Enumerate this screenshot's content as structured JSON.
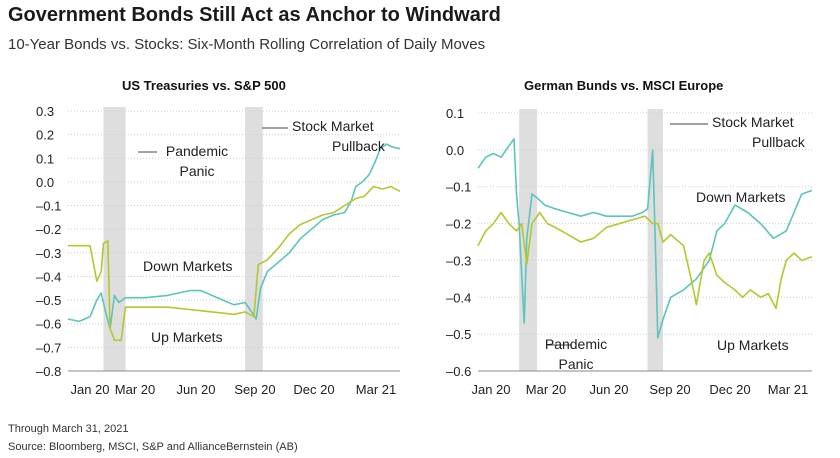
{
  "header": {
    "title": "Government Bonds Still Act as Anchor to Windward",
    "subtitle": "10-Year Bonds vs. Stocks: Six-Month Rolling Correlation of Daily Moves"
  },
  "footer": {
    "note": "Through March 31, 2021",
    "source": "Source: Bloomberg, MSCI, S&P and AllianceBernstein (AB)"
  },
  "colors": {
    "teal": "#5bc4bd",
    "olive": "#b5c72d",
    "shade": "#dedede"
  },
  "chart_data": [
    {
      "type": "line",
      "title": "US Treasuries vs. S&P 500",
      "xlabel": "",
      "ylabel": "",
      "ylim": [
        -0.8,
        0.3
      ],
      "yticks": [
        "0.3",
        "0.2",
        "0.1",
        "0.0",
        "–0.1",
        "–0.2",
        "–0.3",
        "–0.4",
        "–0.5",
        "–0.6",
        "–0.7",
        "–0.8"
      ],
      "xticks": [
        "Jan 20",
        "Mar 20",
        "Jun 20",
        "Sep 20",
        "Dec 20",
        "Mar 21"
      ],
      "shaded_periods": [
        [
          1.6,
          2.6
        ],
        [
          8.0,
          8.8
        ]
      ],
      "annotations": {
        "pandemic": [
          "Pandemic",
          "Panic"
        ],
        "pullback": [
          "Stock Market",
          "Pullback"
        ],
        "down_markets": "Down Markets",
        "up_markets": "Up Markets"
      },
      "series": [
        {
          "name": "Down Markets",
          "color": "teal",
          "points": [
            [
              0,
              -0.58
            ],
            [
              0.5,
              -0.59
            ],
            [
              1.0,
              -0.57
            ],
            [
              1.3,
              -0.5
            ],
            [
              1.5,
              -0.47
            ],
            [
              1.7,
              -0.55
            ],
            [
              1.9,
              -0.62
            ],
            [
              2.1,
              -0.48
            ],
            [
              2.3,
              -0.51
            ],
            [
              2.6,
              -0.49
            ],
            [
              3.5,
              -0.49
            ],
            [
              4.5,
              -0.48
            ],
            [
              5.0,
              -0.47
            ],
            [
              5.5,
              -0.46
            ],
            [
              6.0,
              -0.46
            ],
            [
              6.5,
              -0.48
            ],
            [
              7.0,
              -0.5
            ],
            [
              7.5,
              -0.52
            ],
            [
              8.0,
              -0.51
            ],
            [
              8.3,
              -0.55
            ],
            [
              8.5,
              -0.58
            ],
            [
              8.7,
              -0.45
            ],
            [
              9.0,
              -0.38
            ],
            [
              9.5,
              -0.34
            ],
            [
              10.0,
              -0.3
            ],
            [
              10.5,
              -0.24
            ],
            [
              11.0,
              -0.2
            ],
            [
              11.5,
              -0.16
            ],
            [
              12.0,
              -0.14
            ],
            [
              12.5,
              -0.13
            ],
            [
              12.8,
              -0.08
            ],
            [
              13.0,
              -0.02
            ],
            [
              13.3,
              0.0
            ],
            [
              13.6,
              0.03
            ],
            [
              13.9,
              0.09
            ],
            [
              14.1,
              0.14
            ],
            [
              14.4,
              0.16
            ],
            [
              14.6,
              0.15
            ],
            [
              15.0,
              0.14
            ]
          ]
        },
        {
          "name": "Up Markets",
          "color": "olive",
          "points": [
            [
              0,
              -0.27
            ],
            [
              0.5,
              -0.27
            ],
            [
              1.0,
              -0.27
            ],
            [
              1.3,
              -0.42
            ],
            [
              1.5,
              -0.38
            ],
            [
              1.6,
              -0.26
            ],
            [
              1.8,
              -0.25
            ],
            [
              1.9,
              -0.62
            ],
            [
              2.1,
              -0.67
            ],
            [
              2.4,
              -0.67
            ],
            [
              2.6,
              -0.53
            ],
            [
              3.5,
              -0.53
            ],
            [
              4.5,
              -0.53
            ],
            [
              5.5,
              -0.54
            ],
            [
              6.5,
              -0.55
            ],
            [
              7.5,
              -0.56
            ],
            [
              8.0,
              -0.55
            ],
            [
              8.4,
              -0.57
            ],
            [
              8.6,
              -0.35
            ],
            [
              9.0,
              -0.33
            ],
            [
              9.5,
              -0.28
            ],
            [
              10.0,
              -0.22
            ],
            [
              10.5,
              -0.18
            ],
            [
              11.0,
              -0.16
            ],
            [
              11.5,
              -0.14
            ],
            [
              12.0,
              -0.13
            ],
            [
              12.5,
              -0.1
            ],
            [
              13.0,
              -0.07
            ],
            [
              13.4,
              -0.06
            ],
            [
              13.8,
              -0.02
            ],
            [
              14.2,
              -0.03
            ],
            [
              14.6,
              -0.02
            ],
            [
              15.0,
              -0.04
            ]
          ]
        }
      ]
    },
    {
      "type": "line",
      "title": "German Bunds vs. MSCI Europe",
      "xlabel": "",
      "ylabel": "",
      "ylim": [
        -0.6,
        0.1
      ],
      "yticks": [
        "0.1",
        "0.0",
        "–0.1",
        "–0.2",
        "–0.3",
        "–0.4",
        "–0.5",
        "–0.6"
      ],
      "xticks": [
        "Jan 20",
        "Mar 20",
        "Jun 20",
        "Sep 20",
        "Dec 20",
        "Mar 21"
      ],
      "shaded_periods": [
        [
          1.6,
          2.3
        ],
        [
          6.6,
          7.2
        ]
      ],
      "annotations": {
        "pandemic": [
          "Pandemic",
          "Panic"
        ],
        "pullback": [
          "Stock Market",
          "Pullback"
        ],
        "down_markets": "Down Markets",
        "up_markets": "Up Markets"
      },
      "series": [
        {
          "name": "Down Markets",
          "color": "teal",
          "points": [
            [
              0,
              -0.05
            ],
            [
              0.3,
              -0.02
            ],
            [
              0.6,
              -0.01
            ],
            [
              0.9,
              -0.02
            ],
            [
              1.2,
              0.01
            ],
            [
              1.4,
              0.03
            ],
            [
              1.5,
              -0.12
            ],
            [
              1.6,
              -0.2
            ],
            [
              1.8,
              -0.47
            ],
            [
              1.9,
              -0.24
            ],
            [
              2.1,
              -0.12
            ],
            [
              2.3,
              -0.13
            ],
            [
              2.6,
              -0.15
            ],
            [
              3.0,
              -0.16
            ],
            [
              3.5,
              -0.17
            ],
            [
              4.0,
              -0.18
            ],
            [
              4.5,
              -0.17
            ],
            [
              5.0,
              -0.18
            ],
            [
              5.5,
              -0.18
            ],
            [
              6.0,
              -0.18
            ],
            [
              6.4,
              -0.17
            ],
            [
              6.6,
              -0.16
            ],
            [
              6.8,
              0.0
            ],
            [
              6.9,
              -0.25
            ],
            [
              7.0,
              -0.51
            ],
            [
              7.2,
              -0.46
            ],
            [
              7.5,
              -0.4
            ],
            [
              8.0,
              -0.38
            ],
            [
              8.5,
              -0.35
            ],
            [
              9.0,
              -0.3
            ],
            [
              9.3,
              -0.22
            ],
            [
              9.6,
              -0.2
            ],
            [
              10.0,
              -0.15
            ],
            [
              10.5,
              -0.17
            ],
            [
              11.0,
              -0.2
            ],
            [
              11.5,
              -0.24
            ],
            [
              12.0,
              -0.22
            ],
            [
              12.3,
              -0.17
            ],
            [
              12.6,
              -0.12
            ],
            [
              13.0,
              -0.11
            ]
          ]
        },
        {
          "name": "Up Markets",
          "color": "olive",
          "points": [
            [
              0,
              -0.26
            ],
            [
              0.3,
              -0.22
            ],
            [
              0.6,
              -0.2
            ],
            [
              0.9,
              -0.17
            ],
            [
              1.2,
              -0.2
            ],
            [
              1.5,
              -0.22
            ],
            [
              1.7,
              -0.2
            ],
            [
              1.9,
              -0.31
            ],
            [
              2.1,
              -0.2
            ],
            [
              2.4,
              -0.17
            ],
            [
              2.7,
              -0.2
            ],
            [
              3.0,
              -0.21
            ],
            [
              3.5,
              -0.23
            ],
            [
              4.0,
              -0.25
            ],
            [
              4.5,
              -0.24
            ],
            [
              5.0,
              -0.21
            ],
            [
              5.5,
              -0.2
            ],
            [
              6.0,
              -0.19
            ],
            [
              6.5,
              -0.18
            ],
            [
              6.8,
              -0.2
            ],
            [
              7.0,
              -0.2
            ],
            [
              7.2,
              -0.25
            ],
            [
              7.5,
              -0.23
            ],
            [
              8.0,
              -0.26
            ],
            [
              8.3,
              -0.35
            ],
            [
              8.5,
              -0.42
            ],
            [
              8.8,
              -0.3
            ],
            [
              9.0,
              -0.28
            ],
            [
              9.3,
              -0.34
            ],
            [
              9.6,
              -0.36
            ],
            [
              10.0,
              -0.38
            ],
            [
              10.3,
              -0.4
            ],
            [
              10.6,
              -0.38
            ],
            [
              11.0,
              -0.4
            ],
            [
              11.3,
              -0.39
            ],
            [
              11.6,
              -0.43
            ],
            [
              11.8,
              -0.35
            ],
            [
              12.0,
              -0.3
            ],
            [
              12.3,
              -0.28
            ],
            [
              12.6,
              -0.3
            ],
            [
              13.0,
              -0.29
            ]
          ]
        }
      ]
    }
  ]
}
